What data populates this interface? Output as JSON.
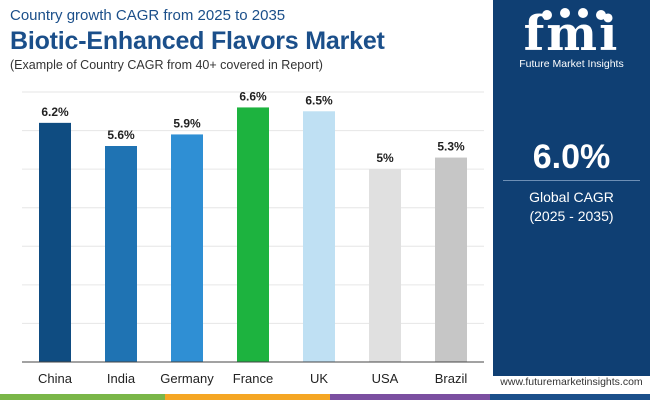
{
  "header": {
    "subtitle": "Country growth CAGR from 2025 to 2035",
    "title": "Biotic-Enhanced Flavors Market",
    "note": "(Example of Country CAGR from 40+ covered in Report)"
  },
  "brand": {
    "logo_text": "fmi",
    "caption": "Future Market Insights",
    "website": "www.futuremarketinsights.com"
  },
  "summary": {
    "value": "6.0%",
    "label_line1": "Global CAGR",
    "label_line2": "(2025 - 2035)"
  },
  "colors": {
    "panel": "#0f3f73",
    "title": "#1b4f8a",
    "strip": [
      "#7ab648",
      "#f5a623",
      "#7b4fa0",
      "#1b4f8a"
    ]
  },
  "chart_data": {
    "type": "bar",
    "categories": [
      "China",
      "India",
      "Germany",
      "France",
      "UK",
      "USA",
      "Brazil"
    ],
    "values": [
      6.2,
      5.6,
      5.9,
      6.6,
      6.5,
      5.0,
      5.3
    ],
    "data_labels": [
      "6.2%",
      "5.6%",
      "5.9%",
      "6.6%",
      "6.5%",
      "5%",
      "5.3%"
    ],
    "bar_colors": [
      "#0f4c81",
      "#1f73b3",
      "#2f8fd4",
      "#1db33f",
      "#bfe0f3",
      "#e0e0e0",
      "#c6c6c6"
    ],
    "ylim": [
      0,
      7
    ],
    "grid": true,
    "legend": "none"
  }
}
